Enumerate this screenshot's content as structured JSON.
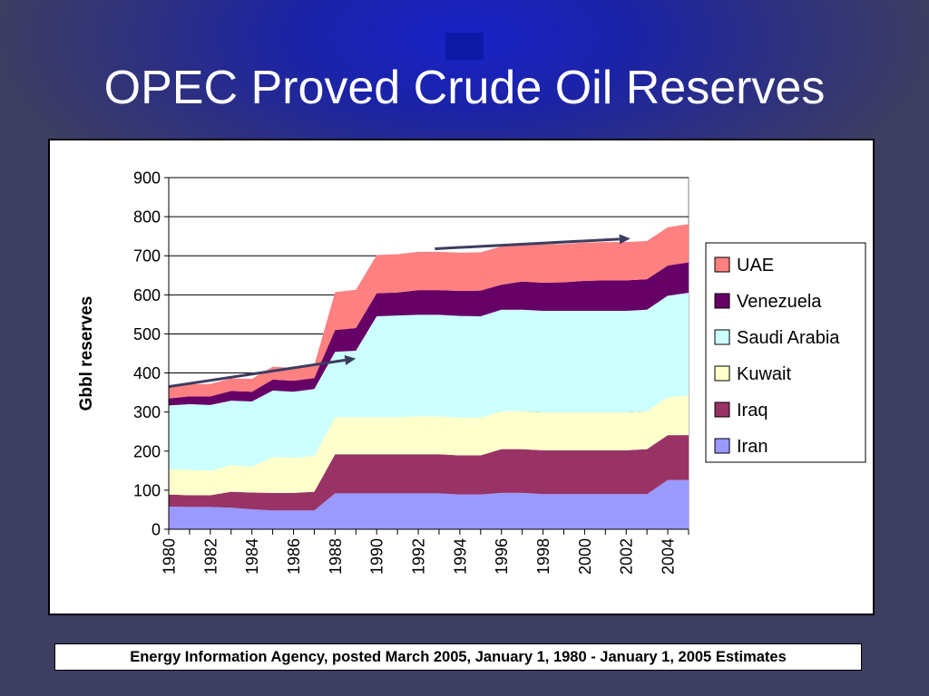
{
  "slide": {
    "title": "OPEC Proved Crude Oil Reserves",
    "source": "Energy Information Agency, posted March 2005, January 1, 1980 - January 1, 2005 Estimates"
  },
  "chart_data": {
    "type": "area",
    "stacked": true,
    "title": "",
    "xlabel": "",
    "ylabel": "Gbbl reserves",
    "x": [
      1980,
      1981,
      1982,
      1983,
      1984,
      1985,
      1986,
      1987,
      1988,
      1989,
      1990,
      1991,
      1992,
      1993,
      1994,
      1995,
      1996,
      1997,
      1998,
      1999,
      2000,
      2001,
      2002,
      2003,
      2004,
      2005
    ],
    "xticks": [
      "1980",
      "1982",
      "1984",
      "1986",
      "1988",
      "1990",
      "1992",
      "1994",
      "1996",
      "1998",
      "2000",
      "2002",
      "2004"
    ],
    "yticks": [
      "0",
      "100",
      "200",
      "300",
      "400",
      "500",
      "600",
      "700",
      "800",
      "900"
    ],
    "ylim": [
      0,
      900
    ],
    "grid": "horizontal",
    "legend_position": "right",
    "series": [
      {
        "name": "Iran",
        "color": "#9999ff",
        "values": [
          58,
          57,
          57,
          55,
          51,
          48,
          48,
          48,
          92,
          92,
          92,
          92,
          92,
          92,
          89,
          89,
          93,
          93,
          90,
          90,
          90,
          90,
          90,
          90,
          126,
          126
        ]
      },
      {
        "name": "Iraq",
        "color": "#993366",
        "values": [
          31,
          30,
          30,
          41,
          43,
          45,
          45,
          48,
          100,
          100,
          100,
          100,
          100,
          100,
          100,
          100,
          112,
          112,
          112,
          112,
          112,
          112,
          112,
          115,
          115,
          115
        ]
      },
      {
        "name": "Kuwait",
        "color": "#ffffcc",
        "values": [
          65,
          65,
          63,
          68,
          66,
          92,
          90,
          92,
          95,
          95,
          95,
          95,
          97,
          97,
          97,
          97,
          97,
          97,
          97,
          97,
          97,
          97,
          97,
          97,
          97,
          101
        ]
      },
      {
        "name": "Saudi Arabia",
        "color": "#ccffff",
        "values": [
          163,
          168,
          168,
          165,
          167,
          170,
          169,
          171,
          167,
          170,
          258,
          260,
          260,
          260,
          260,
          259,
          260,
          260,
          260,
          260,
          260,
          260,
          260,
          260,
          260,
          263
        ]
      },
      {
        "name": "Venezuela",
        "color": "#660066",
        "values": [
          18,
          20,
          22,
          25,
          25,
          28,
          28,
          28,
          56,
          58,
          59,
          59,
          63,
          63,
          64,
          66,
          64,
          72,
          72,
          73,
          77,
          78,
          78,
          78,
          77,
          78
        ]
      },
      {
        "name": "UAE",
        "color": "#ff8080",
        "values": [
          30,
          31,
          32,
          32,
          33,
          33,
          33,
          33,
          97,
          98,
          98,
          98,
          98,
          98,
          98,
          98,
          98,
          98,
          98,
          98,
          98,
          98,
          98,
          98,
          98,
          98
        ]
      }
    ],
    "annotations": [
      {
        "type": "arrow",
        "from": [
          1980,
          365
        ],
        "to": [
          1989,
          437
        ]
      },
      {
        "type": "arrow",
        "from": [
          1992.8,
          718
        ],
        "to": [
          2002.2,
          744
        ]
      }
    ]
  }
}
